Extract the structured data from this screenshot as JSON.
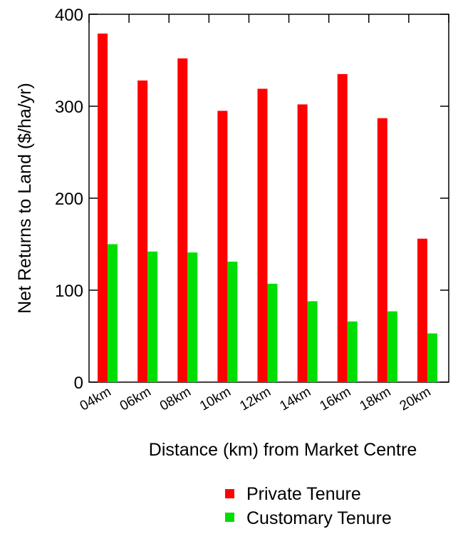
{
  "chart_data": {
    "type": "bar",
    "title": "",
    "xlabel": "Distance (km) from Market Centre",
    "ylabel": "Net Returns to Land ($/ha/yr)",
    "ylim": [
      0,
      400
    ],
    "yticks": [
      0,
      100,
      200,
      300,
      400
    ],
    "grid": false,
    "legend_position": "bottom-right",
    "categories": [
      "04km",
      "06km",
      "08km",
      "10km",
      "12km",
      "14km",
      "16km",
      "18km",
      "20km"
    ],
    "series": [
      {
        "name": "Private Tenure",
        "color": "#ff0000",
        "values": [
          379,
          328,
          352,
          295,
          319,
          302,
          335,
          287,
          156
        ]
      },
      {
        "name": "Customary Tenure",
        "color": "#00dd00",
        "values": [
          150,
          142,
          141,
          131,
          107,
          88,
          66,
          77,
          53
        ]
      }
    ]
  }
}
